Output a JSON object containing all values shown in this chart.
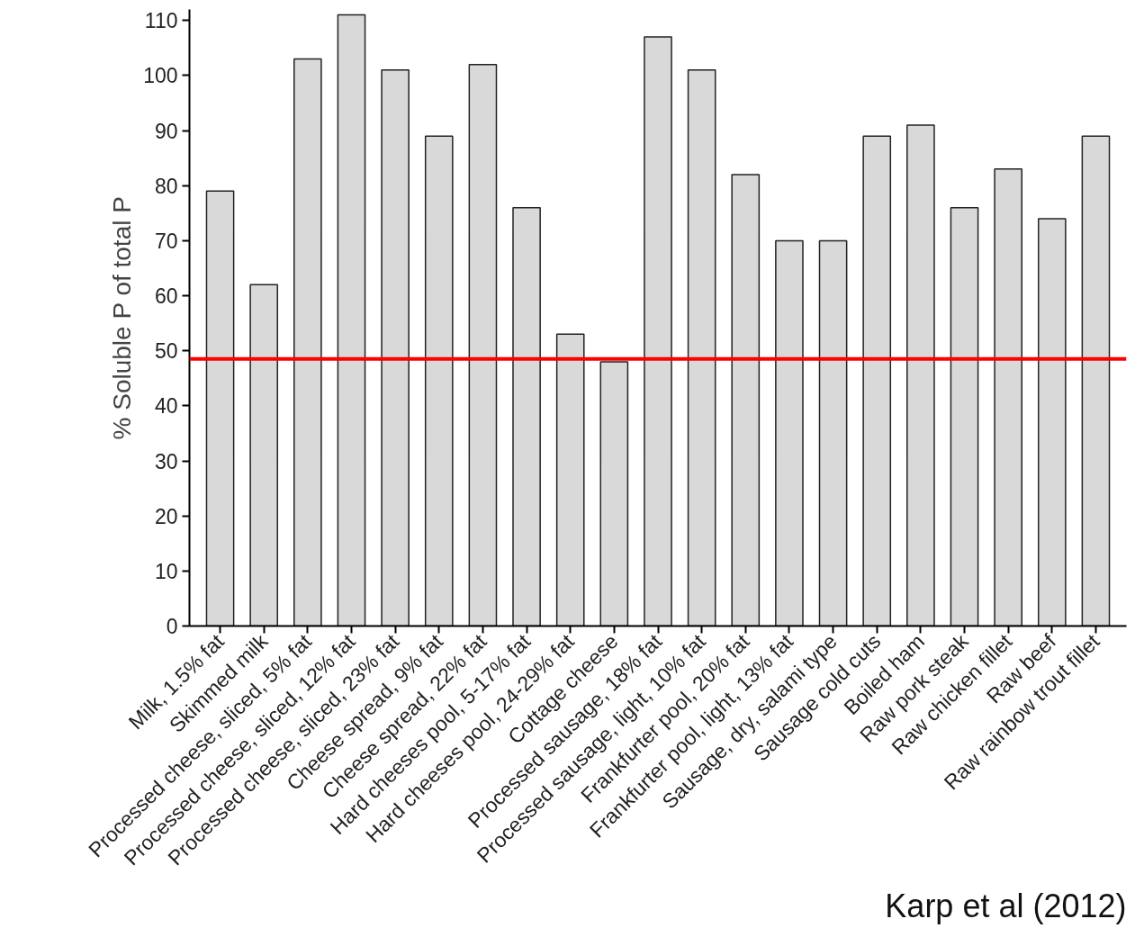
{
  "chart_data": {
    "type": "bar",
    "ylabel": "% Soluble P of total P",
    "categories": [
      "Milk, 1.5% fat",
      "Skimmed milk",
      "Processed cheese, sliced, 5% fat",
      "Processed cheese, sliced, 12% fat",
      "Processed cheese, sliced, 23% fat",
      "Cheese spread, 9% fat",
      "Cheese spread, 22% fat",
      "Hard cheeses pool, 5-17% fat",
      "Hard cheeses pool, 24-29% fat",
      "Cottage cheese",
      "Processed sausage, 18% fat",
      "Processed sausage, light, 10% fat",
      "Frankfurter pool, 20% fat",
      "Frankfurter pool, light, 13% fat",
      "Sausage, dry, salami type",
      "Sausage cold cuts",
      "Boiled ham",
      "Raw pork steak",
      "Raw chicken fillet",
      "Raw beef",
      "Raw rainbow trout fillet"
    ],
    "values": [
      79,
      62,
      103,
      111,
      101,
      89,
      102,
      76,
      53,
      48,
      107,
      101,
      82,
      70,
      70,
      89,
      91,
      76,
      83,
      74,
      89
    ],
    "color": "#d9d9d9",
    "ylim": [
      0,
      112
    ],
    "yticks": [
      0,
      10,
      20,
      30,
      40,
      50,
      60,
      70,
      80,
      90,
      100,
      110
    ],
    "ref_lines": [
      {
        "axis": "y",
        "value": 48.5,
        "color": "#ff0000"
      }
    ],
    "annotations": [
      "Karp et al (2012)"
    ],
    "grid": false
  }
}
